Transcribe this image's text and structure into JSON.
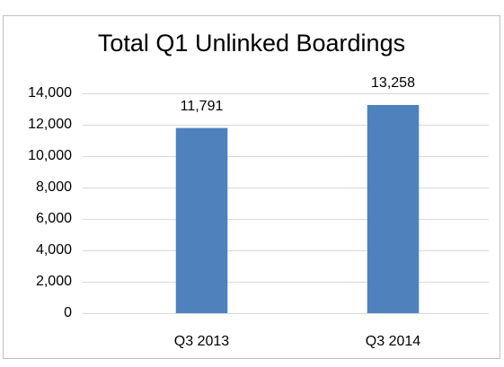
{
  "chart_data": {
    "type": "bar",
    "title": "Total Q1 Unlinked Boardings",
    "categories": [
      "Q3 2013",
      "Q3 2014"
    ],
    "values": [
      11791,
      13258
    ],
    "value_labels": [
      "11,791",
      "13,258"
    ],
    "color": "#4f81bd",
    "ylim": [
      0,
      14000
    ],
    "yticks": [
      0,
      {
        "value": 2000,
        "label": "2,000"
      },
      {
        "value": 4000,
        "label": "4,000"
      },
      {
        "value": 6000,
        "label": "6,000"
      },
      {
        "value": 8000,
        "label": "8,000"
      },
      {
        "value": 10000,
        "label": "10,000"
      },
      {
        "value": 12000,
        "label": "12,000"
      },
      {
        "value": 14000,
        "label": "14,000"
      }
    ],
    "grid": true
  }
}
